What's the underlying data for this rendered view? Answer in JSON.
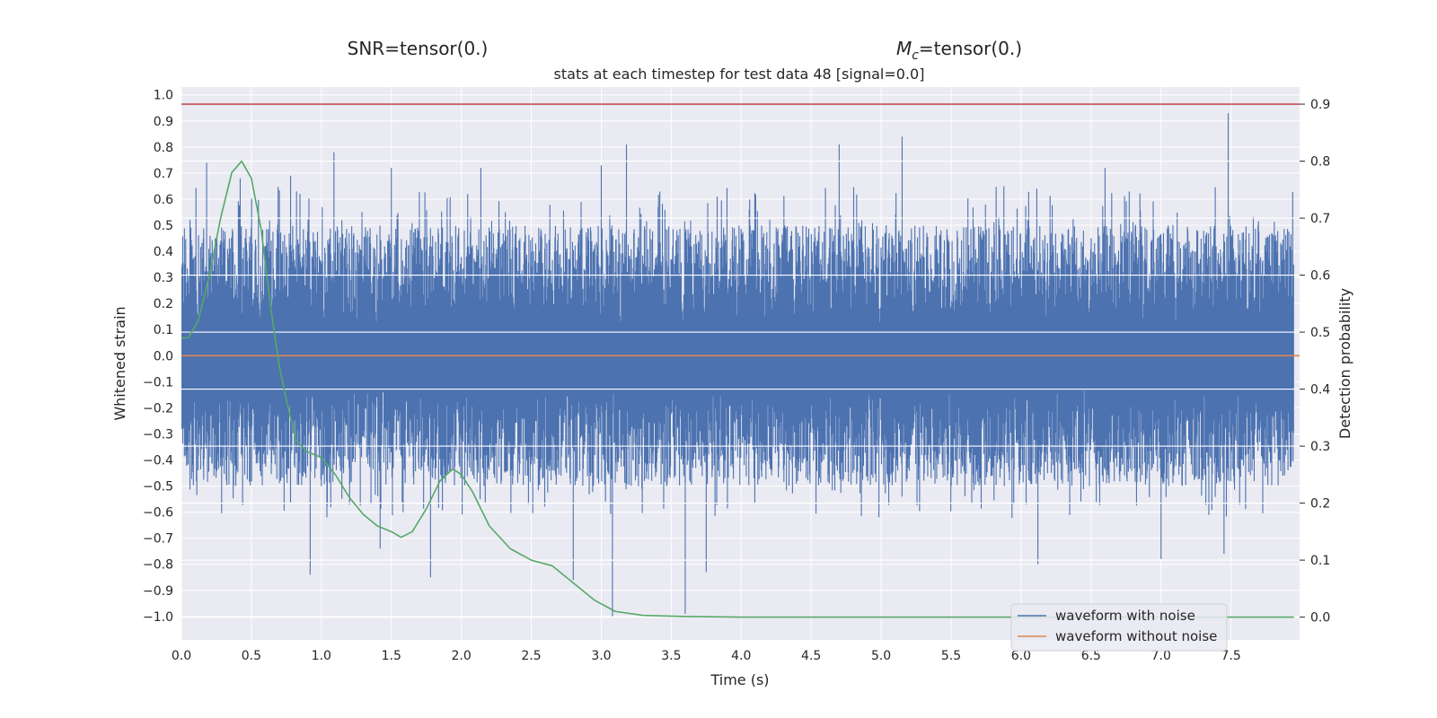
{
  "chart_data": {
    "type": "line",
    "titles": {
      "snr": "SNR=tensor(0.)",
      "mc_symbol": "M",
      "mc_sub": "c",
      "mc_value": "=tensor(0.)",
      "subtitle": "stats at each timestep for test data 48 [signal=0.0]"
    },
    "xlabel": "Time (s)",
    "ylabel_left": "Whitened strain",
    "ylabel_right": "Detection probability",
    "xlim": [
      0.0,
      7.99
    ],
    "ylim_left": [
      -1.09,
      1.03
    ],
    "ylim_right": [
      -0.04,
      0.93
    ],
    "xticks": [
      "0.0",
      "0.5",
      "1.0",
      "1.5",
      "2.0",
      "2.5",
      "3.0",
      "3.5",
      "4.0",
      "4.5",
      "5.0",
      "5.5",
      "6.0",
      "6.5",
      "7.0",
      "7.5"
    ],
    "yticks_left": [
      "1.0",
      "0.9",
      "0.8",
      "0.7",
      "0.6",
      "0.5",
      "0.4",
      "0.3",
      "0.2",
      "0.1",
      "0.0",
      "-0.1",
      "-0.2",
      "-0.3",
      "-0.4",
      "-0.5",
      "-0.6",
      "-0.7",
      "-0.8",
      "-0.9",
      "-1.0"
    ],
    "yticks_right": [
      "0.9",
      "0.8",
      "0.7",
      "0.6",
      "0.5",
      "0.4",
      "0.3",
      "0.2",
      "0.1",
      "0.0"
    ],
    "grid": true,
    "legend_position": "bottom-right",
    "series": [
      {
        "name": "waveform with noise",
        "color": "#4c72b0",
        "axis": "left",
        "description_values": {
          "typical_envelope_top": 0.5,
          "typical_envelope_bottom": -0.5,
          "spikes": [
            {
              "x": 0.18,
              "y": 0.74
            },
            {
              "x": 0.42,
              "y": 0.68
            },
            {
              "x": 0.78,
              "y": 0.69
            },
            {
              "x": 1.09,
              "y": 0.78
            },
            {
              "x": 1.5,
              "y": 0.72
            },
            {
              "x": 2.14,
              "y": 0.72
            },
            {
              "x": 3.0,
              "y": 0.73
            },
            {
              "x": 3.18,
              "y": 0.81
            },
            {
              "x": 4.7,
              "y": 0.81
            },
            {
              "x": 5.15,
              "y": 0.84
            },
            {
              "x": 6.6,
              "y": 0.72
            },
            {
              "x": 7.48,
              "y": 0.93
            },
            {
              "x": 0.92,
              "y": -0.84
            },
            {
              "x": 1.78,
              "y": -0.85
            },
            {
              "x": 1.42,
              "y": -0.74
            },
            {
              "x": 2.8,
              "y": -0.86
            },
            {
              "x": 3.08,
              "y": -1.0
            },
            {
              "x": 3.6,
              "y": -0.99
            },
            {
              "x": 3.75,
              "y": -0.83
            },
            {
              "x": 6.12,
              "y": -0.8
            },
            {
              "x": 7.0,
              "y": -0.78
            },
            {
              "x": 7.45,
              "y": -0.76
            }
          ]
        }
      },
      {
        "name": "waveform without noise",
        "color": "#dd8452",
        "axis": "left",
        "x": [
          0.0,
          7.99
        ],
        "y": [
          0.0,
          0.0
        ]
      },
      {
        "name": "",
        "color": "#55a868",
        "axis": "right",
        "x": [
          0.0,
          0.05,
          0.12,
          0.2,
          0.28,
          0.36,
          0.43,
          0.5,
          0.57,
          0.64,
          0.7,
          0.76,
          0.82,
          0.9,
          1.0,
          1.1,
          1.2,
          1.3,
          1.4,
          1.5,
          1.57,
          1.65,
          1.75,
          1.85,
          1.94,
          2.0,
          2.08,
          2.2,
          2.35,
          2.5,
          2.65,
          2.8,
          2.95,
          3.1,
          3.3,
          3.6,
          4.0,
          5.0,
          6.0,
          7.0,
          7.95
        ],
        "y": [
          0.49,
          0.49,
          0.52,
          0.6,
          0.7,
          0.78,
          0.8,
          0.77,
          0.68,
          0.54,
          0.44,
          0.37,
          0.31,
          0.29,
          0.28,
          0.25,
          0.21,
          0.18,
          0.16,
          0.15,
          0.14,
          0.15,
          0.19,
          0.24,
          0.26,
          0.25,
          0.22,
          0.16,
          0.12,
          0.1,
          0.09,
          0.06,
          0.03,
          0.01,
          0.003,
          0.001,
          0.0,
          0.0,
          0.0,
          0.0,
          0.0
        ]
      },
      {
        "name": "",
        "color": "#c44e52",
        "axis": "right",
        "x": [
          0.0,
          7.99
        ],
        "y": [
          0.9,
          0.9
        ]
      }
    ]
  }
}
